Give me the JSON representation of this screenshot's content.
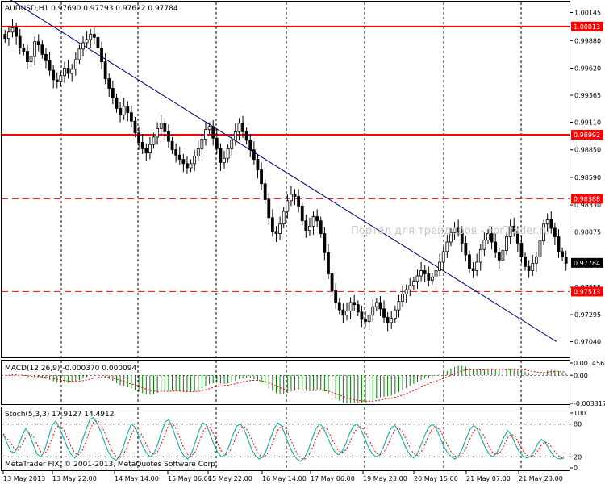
{
  "main_header": "AUDUSD,H1  0.97690 0.97793 0.97622 0.97784",
  "watermark": "Портал для трейдеров - ForTrader.ru",
  "copyright": "MetaTrader FIX, © 2001-2013, MetaQuotes Software Corp.",
  "macd_header": "MACD(12,26,9) -0.000370 0.000094",
  "stoch_header": "Stoch(5,3,3) 17.9127 14.4912",
  "colors": {
    "bull_candle": "#ffffff",
    "bear_candle": "#000000",
    "level_line": "#ff0000",
    "trend_line": "#000080",
    "macd_hist": "#008000",
    "macd_signal": "#ff0000",
    "stoch_main": "#20b2aa",
    "stoch_signal": "#ff0000",
    "grid": "#000000",
    "price_tag_bg": "#000000",
    "level_tag_bg": "#ff0000"
  },
  "chart_data": [
    {
      "type": "candlestick",
      "title": "AUDUSD,H1",
      "ylim": [
        0.969,
        1.0024
      ],
      "price_ticks": [
        "1.00145",
        "0.99880",
        "0.99620",
        "0.99365",
        "0.99110",
        "0.98850",
        "0.98590",
        "0.98330",
        "0.98075",
        "0.97555",
        "0.97295",
        "0.97040"
      ],
      "x_ticks": [
        "13 May 2013",
        "13 May 22:00",
        "14 May 14:00",
        "15 May 06:00",
        "15 May 22:00",
        "16 May 14:00",
        "17 May 06:00",
        "19 May 23:00",
        "20 May 15:00",
        "21 May 07:00",
        "21 May 23:00"
      ],
      "current_price": "0.97784",
      "levels": [
        {
          "value": "1.00013",
          "style": "solid"
        },
        {
          "value": "0.98992",
          "style": "solid"
        },
        {
          "value": "0.98388",
          "style": "dashed"
        },
        {
          "value": "0.97513",
          "style": "dashed"
        }
      ],
      "trendline": {
        "from": 1.0007,
        "to": 0.9704
      },
      "closes": [
        0.999,
        0.9996,
        1.0,
        0.9992,
        0.9981,
        0.9978,
        0.9968,
        0.9973,
        0.9987,
        0.9984,
        0.9975,
        0.9969,
        0.996,
        0.9951,
        0.9949,
        0.9955,
        0.9962,
        0.9957,
        0.9961,
        0.997,
        0.998,
        0.9986,
        0.9989,
        0.9994,
        0.9991,
        0.9981,
        0.9968,
        0.9952,
        0.9943,
        0.9934,
        0.9924,
        0.9918,
        0.9926,
        0.992,
        0.9912,
        0.9901,
        0.9892,
        0.9886,
        0.9882,
        0.989,
        0.9897,
        0.9905,
        0.991,
        0.9902,
        0.9893,
        0.9885,
        0.988,
        0.9876,
        0.9872,
        0.9868,
        0.9872,
        0.9879,
        0.9886,
        0.9895,
        0.9904,
        0.9907,
        0.9896,
        0.9886,
        0.9873,
        0.9877,
        0.9886,
        0.9894,
        0.9902,
        0.991,
        0.9902,
        0.9894,
        0.9885,
        0.9876,
        0.9866,
        0.9853,
        0.9838,
        0.9821,
        0.9808,
        0.9806,
        0.9815,
        0.9827,
        0.9837,
        0.9843,
        0.9841,
        0.9832,
        0.9818,
        0.9809,
        0.9813,
        0.9822,
        0.9818,
        0.9806,
        0.9788,
        0.9768,
        0.9752,
        0.9741,
        0.9734,
        0.9729,
        0.9733,
        0.9741,
        0.9739,
        0.9732,
        0.9725,
        0.9723,
        0.9729,
        0.9737,
        0.9741,
        0.9735,
        0.9727,
        0.9722,
        0.9726,
        0.9734,
        0.9742,
        0.9749,
        0.9753,
        0.9757,
        0.9761,
        0.9766,
        0.9771,
        0.9768,
        0.9762,
        0.9765,
        0.9771,
        0.9779,
        0.9789,
        0.9798,
        0.9807,
        0.9811,
        0.9808,
        0.9797,
        0.9786,
        0.9773,
        0.9771,
        0.9779,
        0.9791,
        0.98,
        0.9806,
        0.9798,
        0.9788,
        0.9781,
        0.979,
        0.9803,
        0.9813,
        0.9808,
        0.9797,
        0.9784,
        0.9775,
        0.9771,
        0.9778,
        0.9784,
        0.9799,
        0.9815,
        0.9819,
        0.9811,
        0.9803,
        0.9789,
        0.9784,
        0.9778
      ]
    },
    {
      "type": "bar",
      "title": "MACD(12,26,9)",
      "values_shown": [
        "-0.000370",
        "0.000094"
      ],
      "ylim": [
        -0.003317,
        0.001456
      ],
      "y_ticks": [
        "0.001456",
        "0.00",
        "-0.003317"
      ],
      "series": [
        {
          "name": "MACD",
          "kind": "histogram"
        },
        {
          "name": "Signal",
          "kind": "dotted-line"
        }
      ]
    },
    {
      "type": "line",
      "title": "Stoch(5,3,3)",
      "values_shown": [
        "17.9127",
        "14.4912"
      ],
      "ylim": [
        0,
        100
      ],
      "y_ticks": [
        "100",
        "80",
        "20",
        "0"
      ],
      "levels": [
        80,
        20
      ],
      "series": [
        {
          "name": "Main",
          "values": [
            62,
            45,
            30,
            28,
            40,
            58,
            72,
            60,
            42,
            25,
            20,
            32,
            55,
            78,
            85,
            72,
            55,
            38,
            25,
            18,
            28,
            50,
            70,
            88,
            92,
            80,
            65,
            45,
            28,
            18,
            14,
            22,
            40,
            62,
            80,
            74,
            58,
            40,
            28,
            20,
            26,
            42,
            64,
            84,
            88,
            72,
            52,
            34,
            22,
            16,
            26,
            46,
            68,
            82,
            78,
            60,
            42,
            28,
            20,
            24,
            40,
            60,
            76,
            80,
            70,
            52,
            34,
            22,
            16,
            20,
            34,
            54,
            72,
            82,
            76,
            58,
            40,
            26,
            16,
            12,
            18,
            32,
            52,
            70,
            80,
            74,
            58,
            42,
            30,
            24,
            30,
            44,
            62,
            76,
            80,
            70,
            54,
            38,
            26,
            20,
            24,
            38,
            56,
            72,
            78,
            68,
            52,
            36,
            24,
            18,
            26,
            42,
            60,
            74,
            80,
            72,
            56,
            40,
            28,
            20,
            16,
            22,
            36,
            54,
            70,
            78,
            70,
            54,
            38,
            26,
            20,
            26,
            40,
            56,
            68,
            60,
            44,
            30,
            22,
            18,
            20,
            30,
            44,
            52,
            46,
            34,
            24,
            18,
            16,
            18
          ]
        },
        {
          "name": "Signal",
          "values": []
        }
      ]
    }
  ]
}
